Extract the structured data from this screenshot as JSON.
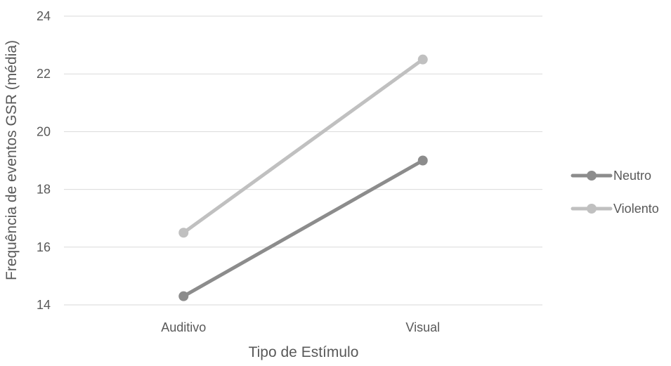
{
  "chart_data": {
    "type": "line",
    "title": "",
    "xlabel": "Tipo de Estímulo",
    "ylabel": "Frequência de eventos GSR (média)",
    "categories": [
      "Auditivo",
      "Visual"
    ],
    "ylim": [
      14,
      24
    ],
    "yticks": [
      14,
      16,
      18,
      20,
      22,
      24
    ],
    "grid": true,
    "legend_position": "right",
    "series": [
      {
        "name": "Neutro",
        "values": [
          14.3,
          19.0
        ],
        "color": "#8c8c8c"
      },
      {
        "name": "Violento",
        "values": [
          16.5,
          22.5
        ],
        "color": "#c0c0c0"
      }
    ],
    "gridline_color": "#d9d9d9",
    "text_color": "#595959"
  }
}
